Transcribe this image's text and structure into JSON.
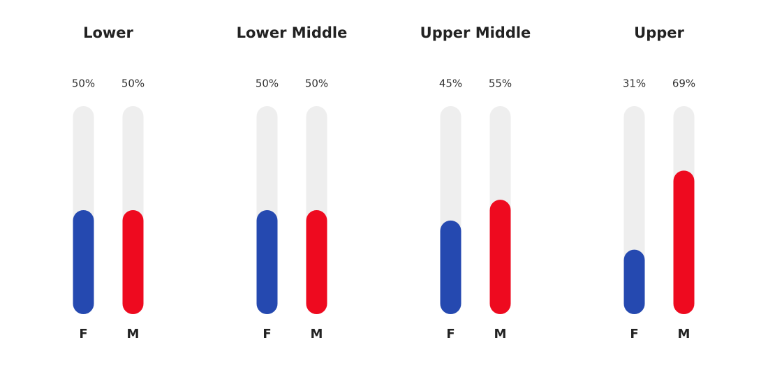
{
  "chart_data": {
    "type": "bar",
    "categories": [
      "Lower",
      "Lower Middle",
      "Upper Middle",
      "Upper"
    ],
    "series": [
      {
        "name": "F",
        "color": "#2549b0",
        "values": [
          50,
          50,
          45,
          31
        ],
        "value_labels": [
          "50%",
          "50%",
          "45%",
          "31%"
        ]
      },
      {
        "name": "M",
        "color": "#ee0a1f",
        "values": [
          50,
          50,
          55,
          69
        ],
        "value_labels": [
          "50%",
          "50%",
          "55%",
          "69%"
        ]
      }
    ],
    "ylim": [
      0,
      100
    ]
  }
}
